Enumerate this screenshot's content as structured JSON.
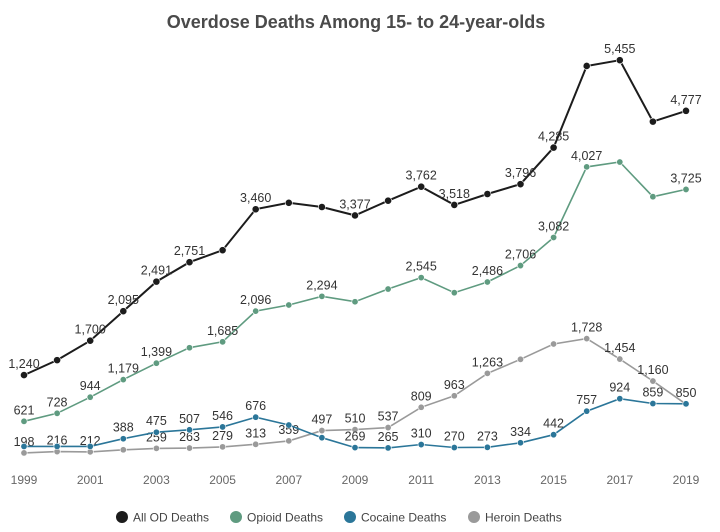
{
  "chart_data": {
    "type": "line",
    "title": "Overdose Deaths Among 15- to 24-year-olds",
    "xlabel": "",
    "ylabel": "",
    "x": [
      1999,
      2000,
      2001,
      2002,
      2003,
      2004,
      2005,
      2006,
      2007,
      2008,
      2009,
      2010,
      2011,
      2012,
      2013,
      2014,
      2015,
      2016,
      2017,
      2018,
      2019
    ],
    "x_tick_labels": [
      "1999",
      "2001",
      "2003",
      "2005",
      "2007",
      "2009",
      "2011",
      "2013",
      "2015",
      "2017",
      "2019"
    ],
    "ylim": [
      0,
      5600
    ],
    "grid": false,
    "legend_position": "bottom",
    "series": [
      {
        "name": "All OD Deaths",
        "color": "#1c1c1c",
        "values": [
          1240,
          1440,
          1700,
          2095,
          2491,
          2751,
          2912,
          3460,
          3546,
          3490,
          3377,
          3574,
          3762,
          3518,
          3664,
          3796,
          4285,
          5378,
          5455,
          4633,
          4777
        ],
        "data_labels": [
          "1,240",
          null,
          "1,700",
          "2,095",
          "2,491",
          "2,751",
          null,
          "3,460",
          null,
          null,
          "3,377",
          null,
          "3,762",
          "3,518",
          null,
          "3,796",
          "4,285",
          null,
          "5,455",
          null,
          "4,777"
        ]
      },
      {
        "name": "Opioid Deaths",
        "color": "#5f9b80",
        "values": [
          621,
          728,
          944,
          1179,
          1399,
          1606,
          1685,
          2096,
          2178,
          2294,
          2222,
          2392,
          2545,
          2343,
          2486,
          2706,
          3082,
          4027,
          4092,
          3628,
          3725
        ],
        "data_labels": [
          "621",
          "728",
          "944",
          "1,179",
          "1,399",
          null,
          "1,685",
          "2,096",
          null,
          "2,294",
          null,
          null,
          "2,545",
          null,
          "2,486",
          "2,706",
          "3,082",
          "4,027",
          null,
          null,
          "3,725"
        ]
      },
      {
        "name": "Cocaine Deaths",
        "color": "#2b7699",
        "values": [
          285,
          285,
          285,
          388,
          475,
          507,
          546,
          676,
          571,
          402,
          269,
          265,
          310,
          270,
          273,
          334,
          442,
          757,
          924,
          859,
          855
        ],
        "data_labels": [
          null,
          null,
          null,
          "388",
          "475",
          "507",
          "546",
          "676",
          null,
          null,
          "269",
          "265",
          "310",
          "270",
          "273",
          "334",
          "442",
          "757",
          "924",
          "859",
          null
        ]
      },
      {
        "name": "Heroin Deaths",
        "color": "#9a9a9a",
        "values": [
          198,
          216,
          212,
          240,
          259,
          263,
          279,
          313,
          359,
          497,
          510,
          537,
          809,
          963,
          1263,
          1451,
          1656,
          1728,
          1454,
          1160,
          850
        ],
        "data_labels": [
          "198",
          "216",
          "212",
          null,
          "259",
          "263",
          "279",
          "313",
          "359",
          "497",
          "510",
          "537",
          "809",
          "963",
          "1,263",
          null,
          null,
          "1,728",
          "1,454",
          "1,160",
          "850"
        ]
      }
    ]
  }
}
